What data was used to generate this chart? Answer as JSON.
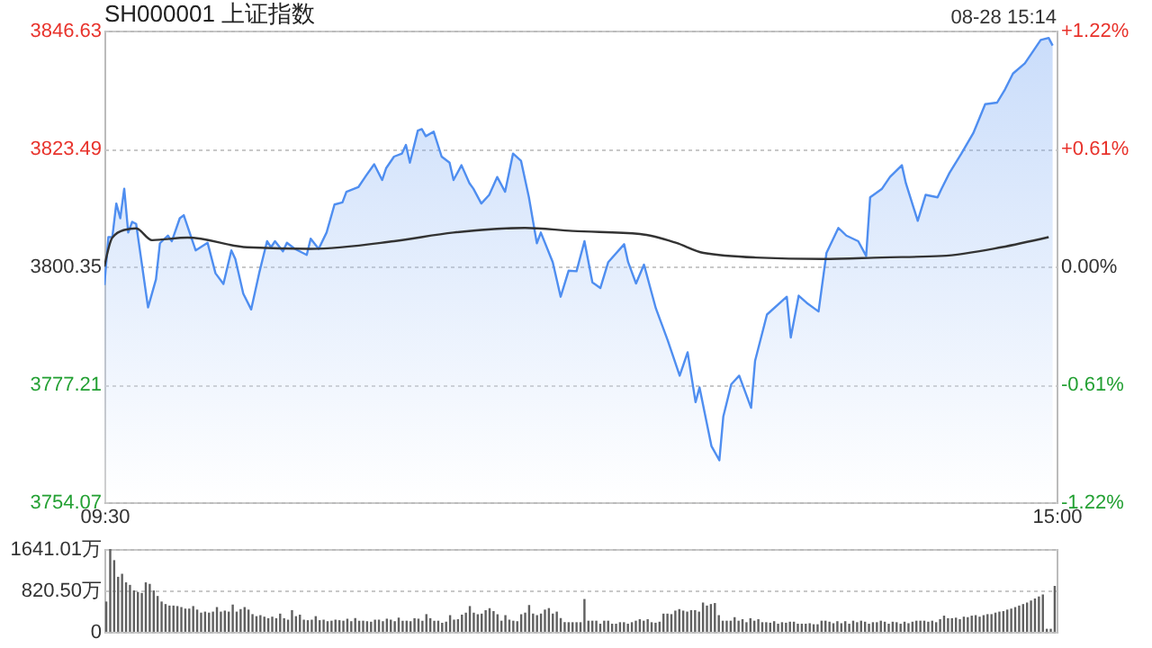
{
  "chart_data": [
    {
      "type": "area",
      "title": "SH000001 上证指数",
      "annotations": [
        "08-28 15:14"
      ],
      "categories": [
        "09:30",
        null,
        null,
        null,
        null,
        null,
        null,
        null,
        null,
        null,
        null,
        null,
        null,
        null,
        null,
        null,
        null,
        null,
        null,
        null,
        null,
        null,
        null,
        null,
        null,
        null,
        null,
        null,
        null,
        null,
        null,
        null,
        null,
        null,
        null,
        null,
        null,
        null,
        null,
        null,
        null,
        null,
        null,
        null,
        null,
        null,
        null,
        null,
        null,
        null,
        null,
        null,
        null,
        null,
        null,
        null,
        null,
        null,
        null,
        null,
        null,
        null,
        null,
        null,
        null,
        null,
        null,
        null,
        null,
        null,
        null,
        null,
        null,
        null,
        null,
        null,
        null,
        null,
        null,
        null,
        null,
        null,
        null,
        null,
        null,
        null,
        null,
        null,
        null,
        null,
        null,
        null,
        null,
        null,
        null,
        null,
        null,
        null,
        null,
        null,
        null,
        null,
        null,
        null,
        null,
        null,
        null,
        null,
        null,
        null,
        null,
        null,
        null,
        null,
        null,
        null,
        null,
        null,
        null,
        null,
        null,
        null,
        null,
        null,
        null,
        null,
        null,
        null,
        null,
        null,
        null,
        null,
        null,
        null,
        null,
        null,
        null,
        null,
        null,
        null,
        null,
        null,
        null,
        null,
        null,
        null,
        null,
        null,
        null,
        null,
        null,
        null,
        null,
        null,
        null,
        null,
        null,
        null,
        null,
        null,
        null,
        null,
        null,
        null,
        null,
        null,
        null,
        null,
        null,
        null,
        null,
        null,
        null,
        null,
        null,
        null,
        null,
        null,
        null,
        null,
        null,
        null,
        null,
        null,
        null,
        null,
        null,
        null,
        null,
        null,
        null,
        null,
        null,
        null,
        null,
        null,
        null,
        null,
        null,
        null,
        null,
        null,
        null,
        null,
        null,
        null,
        null,
        null,
        null,
        null,
        null,
        null,
        null,
        null,
        null,
        null,
        null,
        null,
        null,
        null,
        null,
        null,
        null,
        null,
        null,
        null,
        null,
        null,
        null,
        null,
        null,
        null,
        null,
        null,
        null,
        null,
        null,
        null,
        null,
        null,
        "15:00"
      ],
      "ylim": [
        3754.07,
        3846.63
      ],
      "yticks": [
        3754.07,
        3777.21,
        3800.35,
        3823.49,
        3846.63
      ],
      "y2lim": [
        -1.22,
        1.22
      ],
      "y2ticks": [
        {
          "value": -1.22,
          "label": "-1.22%"
        },
        {
          "value": -0.61,
          "label": "-0.61%"
        },
        {
          "value": 0,
          "label": "0.00%"
        },
        {
          "value": 0.61,
          "label": "+0.61%"
        },
        {
          "value": 1.22,
          "label": "+1.22%"
        }
      ],
      "grid": "y",
      "series": [
        {
          "type": "area",
          "color": "#4f8ef0",
          "values": [
            3796.7,
            3806.1,
            3806.1,
            3812.7,
            3809.8,
            3815.6,
            3807.0,
            3809.1,
            3808.7,
            null,
            null,
            3792.3,
            null,
            3797.8,
            3804.9,
            null,
            3806.4,
            3805.3,
            null,
            3809.8,
            3810.4,
            3808.1,
            null,
            3803.5,
            null,
            null,
            3805.0,
            null,
            3799.0,
            null,
            3796.9,
            null,
            3803.5,
            3801.8,
            null,
            3795.0,
            null,
            3791.9,
            null,
            3799.0,
            null,
            3805.3,
            3804.1,
            3805.3,
            null,
            3803.3,
            3805.0,
            null,
            3803.8,
            null,
            null,
            3802.6,
            3805.8,
            null,
            3803.8,
            null,
            3807.0,
            null,
            3812.5,
            null,
            3812.9,
            3815.0,
            null,
            null,
            3815.9,
            null,
            3818.2,
            null,
            3820.4,
            null,
            3817.3,
            3819.6,
            null,
            3821.9,
            null,
            3822.5,
            3824.2,
            3820.7,
            null,
            3827.0,
            3827.3,
            3825.9,
            null,
            3826.8,
            null,
            3821.9,
            null,
            3820.7,
            3817.3,
            null,
            3820.2,
            null,
            3816.7,
            3815.6,
            null,
            3812.7,
            null,
            3814.4,
            null,
            3817.9,
            null,
            3815.0,
            null,
            3822.5,
            null,
            3821.1,
            null,
            3813.9,
            null,
            3804.9,
            3807.0,
            null,
            null,
            3801.2,
            null,
            3794.4,
            null,
            3799.5,
            null,
            3799.4,
            null,
            3805.3,
            null,
            3797.2,
            null,
            3796.1,
            null,
            3801.2,
            null,
            null,
            null,
            3804.7,
            3801.2,
            null,
            3797.0,
            null,
            3800.7,
            null,
            null,
            3792.1,
            null,
            null,
            3785.8,
            null,
            null,
            3778.9,
            null,
            3783.5,
            null,
            3773.7,
            3776.6,
            null,
            null,
            3765.1,
            null,
            3762.3,
            3770.9,
            null,
            3777.2,
            null,
            3778.9,
            null,
            null,
            3772.6,
            3781.8,
            null,
            null,
            3790.9,
            null,
            null,
            null,
            null,
            3794.4,
            3786.4,
            null,
            3794.6,
            null,
            3793.2,
            null,
            null,
            3791.5,
            null,
            3803.0,
            null,
            null,
            3807.9,
            null,
            3806.4,
            null,
            null,
            3805.3,
            null,
            3802.4,
            3813.9,
            null,
            null,
            3815.6,
            null,
            3817.9,
            null,
            null,
            3820.2,
            3816.7,
            null,
            null,
            3809.3,
            null,
            3814.4,
            null,
            null,
            3813.9,
            3815.6,
            null,
            3818.7,
            null,
            null,
            3822.5,
            null,
            null,
            3826.5,
            null,
            null,
            3832.2,
            null,
            null,
            3832.5,
            null,
            3835.1,
            null,
            3838.2,
            null,
            null,
            3840.2,
            null,
            null,
            null,
            3844.8,
            null,
            3845.2,
            3843.7,
            null
          ]
        },
        {
          "type": "line",
          "color": "#333333",
          "values": [
            3800.3,
            null,
            3806.0,
            null,
            null,
            3807.5,
            null,
            null,
            3807.8,
            null,
            null,
            null,
            3805.5,
            null,
            null,
            null,
            null,
            null,
            null,
            null,
            null,
            3806.0,
            null,
            null,
            null,
            null,
            null,
            null,
            null,
            null,
            null,
            null,
            null,
            null,
            null,
            null,
            3804.1,
            null,
            null,
            null,
            null,
            null,
            null,
            null,
            null,
            null,
            null,
            null,
            null,
            null,
            null,
            null,
            3803.8,
            null,
            null,
            null,
            null,
            null,
            null,
            null,
            null,
            null,
            null,
            null,
            null,
            null,
            null,
            null,
            null,
            null,
            null,
            null,
            null,
            3805.3,
            null,
            null,
            null,
            null,
            null,
            null,
            null,
            null,
            null,
            null,
            null,
            null,
            null,
            null,
            3807.0,
            null,
            null,
            null,
            null,
            null,
            null,
            null,
            null,
            null,
            null,
            null,
            null,
            null,
            null,
            null,
            null,
            null,
            3807.9,
            null,
            null,
            null,
            null,
            null,
            null,
            null,
            null,
            null,
            null,
            null,
            3807.3,
            null,
            null,
            null,
            null,
            null,
            null,
            null,
            null,
            null,
            null,
            null,
            null,
            null,
            null,
            null,
            null,
            3806.7,
            null,
            null,
            null,
            null,
            null,
            null,
            null,
            null,
            3805.0,
            null,
            null,
            null,
            null,
            null,
            null,
            3803.0,
            null,
            null,
            null,
            null,
            null,
            null,
            null,
            null,
            null,
            null,
            null,
            null,
            3802.1,
            null,
            null,
            null,
            null,
            null,
            null,
            null,
            null,
            null,
            null,
            null,
            null,
            null,
            null,
            null,
            null,
            3801.8,
            null,
            null,
            null,
            null,
            null,
            null,
            null,
            null,
            null,
            null,
            null,
            null,
            null,
            null,
            3802.1,
            null,
            null,
            null,
            null,
            null,
            null,
            null,
            null,
            null,
            null,
            null,
            null,
            null,
            null,
            3802.4,
            null,
            null,
            null,
            null,
            null,
            null,
            null,
            null,
            null,
            null,
            null,
            null,
            null,
            null,
            3804.1,
            null,
            null,
            null,
            null,
            null,
            null,
            null,
            null,
            null,
            null,
            null,
            3806.1,
            null,
            null
          ]
        }
      ]
    },
    {
      "type": "bar",
      "ylim": [
        0,
        1641.01
      ],
      "yticks": [
        0,
        {
          "value": 820.5,
          "label": "820.50万"
        },
        {
          "value": 1641.01,
          "label": "1641.01万"
        }
      ],
      "grid": "y",
      "tick_labels": "y",
      "categories": [
        null,
        null,
        null,
        null,
        null,
        null,
        null,
        null,
        null,
        null,
        null,
        null,
        null,
        null,
        null,
        null,
        null,
        null,
        null,
        null,
        null,
        null,
        null,
        null,
        null,
        null,
        null,
        null,
        null,
        null,
        null,
        null,
        null,
        null,
        null,
        null,
        null,
        null,
        null,
        null,
        null,
        null,
        null,
        null,
        null,
        null,
        null,
        null,
        null,
        null,
        null,
        null,
        null,
        null,
        null,
        null,
        null,
        null,
        null,
        null,
        null,
        null,
        null,
        null,
        null,
        null,
        null,
        null,
        null,
        null,
        null,
        null,
        null,
        null,
        null,
        null,
        null,
        null,
        null,
        null,
        null,
        null,
        null,
        null,
        null,
        null,
        null,
        null,
        null,
        null,
        null,
        null,
        null,
        null,
        null,
        null,
        null,
        null,
        null,
        null,
        null,
        null,
        null,
        null,
        null,
        null,
        null,
        null,
        null,
        null,
        null,
        null,
        null,
        null,
        null,
        null,
        null,
        null,
        null,
        null,
        null,
        null,
        null,
        null,
        null,
        null,
        null,
        null,
        null,
        null,
        null,
        null,
        null,
        null,
        null,
        null,
        null,
        null,
        null,
        null,
        null,
        null,
        null,
        null,
        null,
        null,
        null,
        null,
        null,
        null,
        null,
        null,
        null,
        null,
        null,
        null,
        null,
        null,
        null,
        null,
        null,
        null,
        null,
        null,
        null,
        null,
        null,
        null,
        null,
        null,
        null,
        null,
        null,
        null,
        null,
        null,
        null,
        null,
        null,
        null,
        null,
        null,
        null,
        null,
        null,
        null,
        null,
        null,
        null,
        null,
        null,
        null,
        null,
        null,
        null,
        null,
        null,
        null,
        null,
        null,
        null,
        null,
        null,
        null,
        null,
        null,
        null,
        null,
        null,
        null,
        null,
        null,
        null,
        null,
        null,
        null,
        null,
        null,
        null,
        null,
        null,
        null,
        null,
        null,
        null,
        null,
        null,
        null,
        null,
        null,
        null,
        null,
        null,
        null,
        null,
        null,
        null,
        null,
        null,
        null,
        null
      ],
      "series": [
        {
          "color": "#606060",
          "values": [
            600,
            1640,
            1420,
            1090,
            1150,
            980,
            930,
            820,
            790,
            770,
            980,
            950,
            820,
            710,
            600,
            550,
            520,
            520,
            510,
            490,
            460,
            460,
            510,
            440,
            380,
            400,
            380,
            400,
            490,
            400,
            420,
            400,
            540,
            400,
            450,
            490,
            440,
            350,
            310,
            330,
            300,
            270,
            300,
            270,
            360,
            270,
            240,
            430,
            310,
            340,
            240,
            230,
            240,
            310,
            230,
            240,
            210,
            220,
            240,
            230,
            220,
            260,
            210,
            270,
            220,
            220,
            210,
            200,
            240,
            240,
            210,
            260,
            240,
            210,
            280,
            220,
            220,
            210,
            270,
            260,
            220,
            350,
            270,
            220,
            220,
            180,
            200,
            330,
            240,
            250,
            340,
            380,
            510,
            380,
            350,
            360,
            430,
            470,
            410,
            350,
            220,
            330,
            240,
            220,
            210,
            350,
            380,
            530,
            360,
            330,
            360,
            440,
            470,
            360,
            400,
            270,
            190,
            190,
            190,
            190,
            190,
            650,
            220,
            220,
            220,
            160,
            220,
            220,
            160,
            160,
            190,
            190,
            160,
            190,
            220,
            250,
            220,
            250,
            190,
            180,
            200,
            360,
            360,
            350,
            420,
            450,
            420,
            400,
            430,
            430,
            400,
            580,
            520,
            550,
            570,
            330,
            220,
            220,
            220,
            290,
            220,
            250,
            190,
            270,
            220,
            250,
            190,
            190,
            180,
            210,
            160,
            190,
            180,
            200,
            200,
            160,
            160,
            160,
            170,
            150,
            150,
            220,
            220,
            200,
            170,
            210,
            170,
            210,
            160,
            220,
            190,
            220,
            200,
            160,
            190,
            190,
            220,
            200,
            160,
            200,
            190,
            160,
            200,
            170,
            200,
            220,
            220,
            220,
            200,
            220,
            190,
            250,
            320,
            270,
            270,
            280,
            250,
            300,
            290,
            320,
            330,
            300,
            330,
            350,
            350,
            380,
            400,
            410,
            440,
            460,
            490,
            520,
            550,
            580,
            620,
            660,
            700,
            740,
            60,
            60,
            910
          ]
        }
      ]
    }
  ]
}
